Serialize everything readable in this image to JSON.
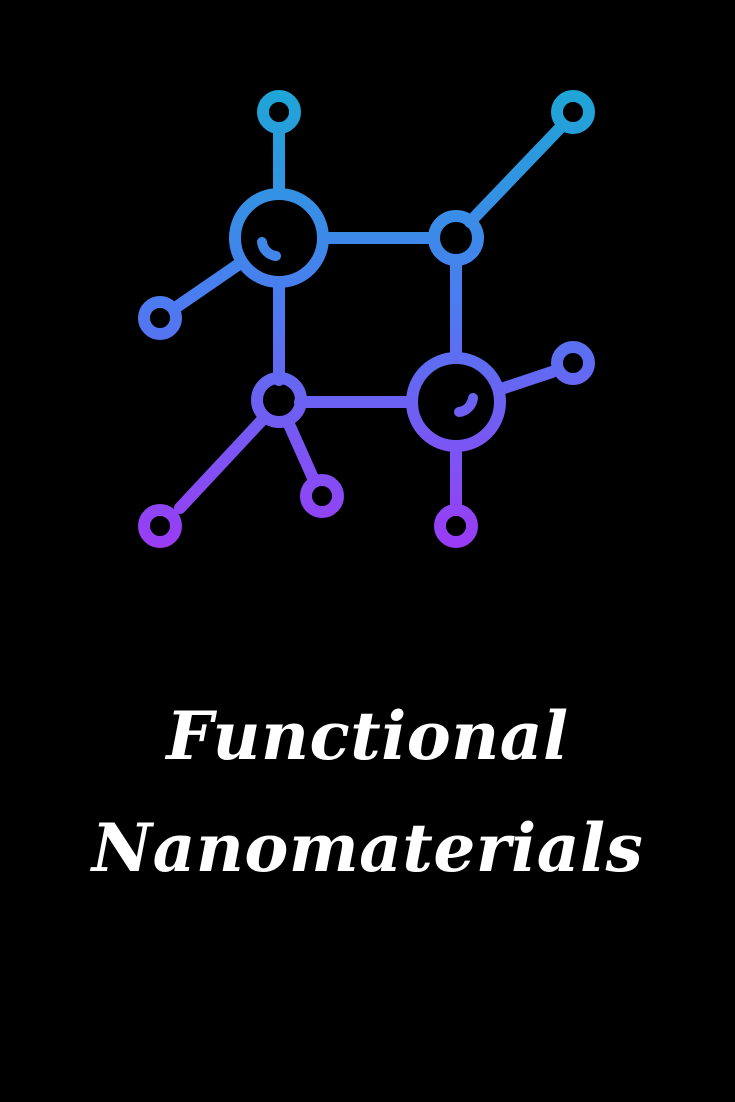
{
  "title": {
    "line1": "Functional",
    "line2": "Nanomaterials"
  },
  "colors": {
    "background": "#000000",
    "text": "#ffffff",
    "gradient_top": "#1ea6d6",
    "gradient_mid": "#5a6cf0",
    "gradient_bottom": "#9b3bf5"
  },
  "icon": {
    "name": "molecule-network-icon"
  }
}
